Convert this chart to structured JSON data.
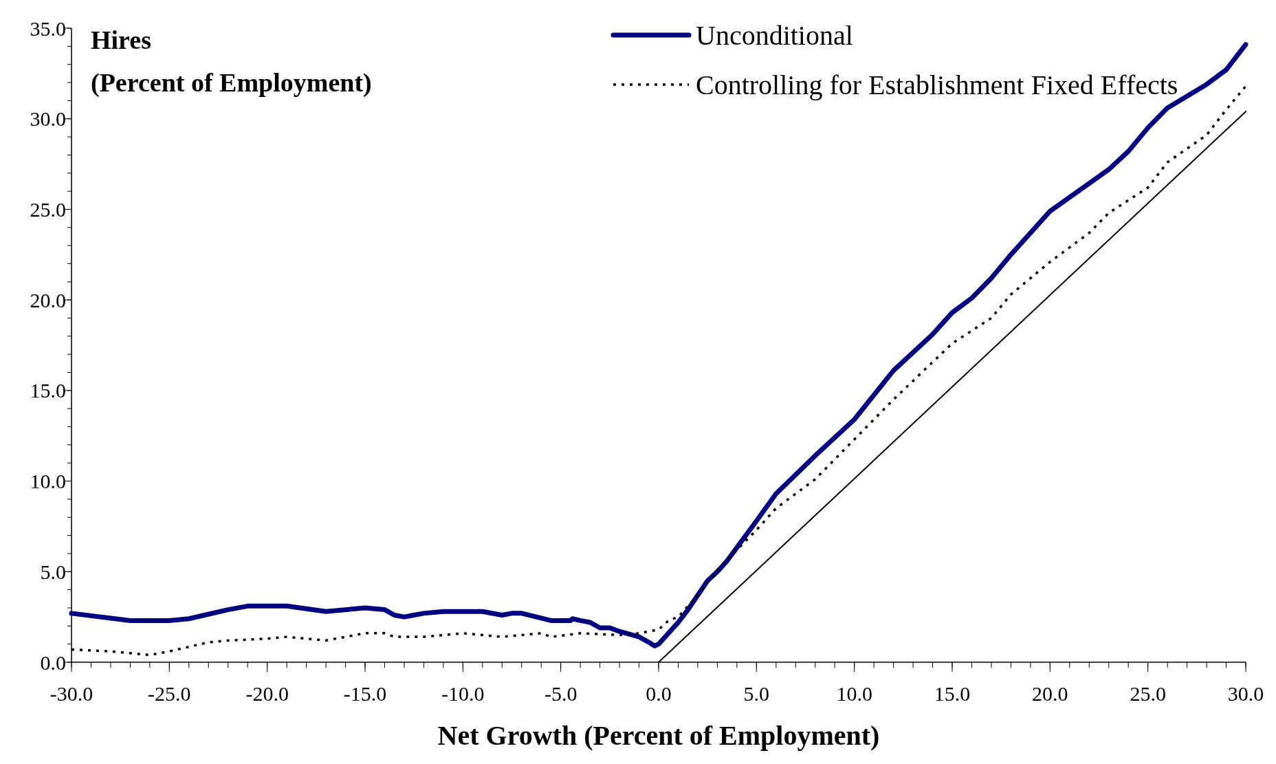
{
  "chart_data": {
    "type": "line",
    "ylabel": "Hires\n(Percent of Employment)",
    "xlabel": "Net Growth (Percent of Employment)",
    "xlim": [
      -30,
      30
    ],
    "ylim": [
      0,
      35
    ],
    "xticks": [
      {
        "value": -30,
        "label": "-30.0"
      },
      {
        "value": -25,
        "label": "-25.0"
      },
      {
        "value": -20,
        "label": "-20.0"
      },
      {
        "value": -15,
        "label": "-15.0"
      },
      {
        "value": -10,
        "label": "-10.0"
      },
      {
        "value": -5,
        "label": "-5.0"
      },
      {
        "value": 0,
        "label": "0.0"
      },
      {
        "value": 5,
        "label": "5.0"
      },
      {
        "value": 10,
        "label": "10.0"
      },
      {
        "value": 15,
        "label": "15.0"
      },
      {
        "value": 20,
        "label": "20.0"
      },
      {
        "value": 25,
        "label": "25.0"
      },
      {
        "value": 30,
        "label": "30.0"
      }
    ],
    "yticks": [
      {
        "value": 0,
        "label": "0.0"
      },
      {
        "value": 5,
        "label": "5.0"
      },
      {
        "value": 10,
        "label": "10.0"
      },
      {
        "value": 15,
        "label": "15.0"
      },
      {
        "value": 20,
        "label": "20.0"
      },
      {
        "value": 25,
        "label": "25.0"
      },
      {
        "value": 30,
        "label": "30.0"
      },
      {
        "value": 35,
        "label": "35.0"
      }
    ],
    "grid": false,
    "legend": "top right",
    "line_style": "solid",
    "marker": "none",
    "series": [
      {
        "name": "Unconditional",
        "color": "#000080",
        "x": [
          -30,
          -27,
          -25,
          -24,
          -22,
          -21,
          -19,
          -17,
          -15,
          -14,
          -13.5,
          -13,
          -12.5,
          -12,
          -11,
          -9,
          -8,
          -7.5,
          -7,
          -5.5,
          -4.5,
          -4.4,
          -4,
          -3.5,
          -3,
          -2.5,
          -2,
          -1,
          -0.5,
          -0.2,
          0,
          0.5,
          1,
          1.5,
          2,
          2.5,
          3,
          3.5,
          5,
          6,
          8,
          10,
          12,
          13.5,
          14,
          15,
          16,
          17,
          18,
          20,
          23,
          24,
          25,
          26,
          28,
          29,
          30
        ],
        "values": [
          2.7,
          2.3,
          2.3,
          2.4,
          2.9,
          3.1,
          3.1,
          2.8,
          3.0,
          2.9,
          2.6,
          2.5,
          2.6,
          2.7,
          2.8,
          2.8,
          2.6,
          2.7,
          2.7,
          2.3,
          2.3,
          2.4,
          2.3,
          2.2,
          1.9,
          1.9,
          1.7,
          1.4,
          1.1,
          0.9,
          1.0,
          1.6,
          2.2,
          2.9,
          3.7,
          4.5,
          5.0,
          5.6,
          7.8,
          9.3,
          11.4,
          13.4,
          16.1,
          17.6,
          18.1,
          19.3,
          20.1,
          21.2,
          22.5,
          24.9,
          27.2,
          28.2,
          29.5,
          30.6,
          31.9,
          32.7,
          34.1
        ]
      },
      {
        "name": "Controlling for Establishment Fixed Effects",
        "color": "#000000",
        "line_style": "dotted",
        "x": [
          -30,
          -28,
          -26,
          -25,
          -23,
          -22,
          -20,
          -19,
          -17,
          -15,
          -14,
          -13.5,
          -12,
          -10,
          -8,
          -6,
          -5.5,
          -4,
          -2,
          -1,
          0,
          0.5,
          1,
          2,
          3,
          5,
          6,
          8,
          10,
          12,
          15,
          17,
          18,
          20,
          22,
          23,
          25,
          26,
          28,
          29,
          30
        ],
        "values": [
          0.7,
          0.6,
          0.4,
          0.6,
          1.1,
          1.2,
          1.3,
          1.4,
          1.2,
          1.6,
          1.6,
          1.4,
          1.4,
          1.6,
          1.4,
          1.6,
          1.4,
          1.6,
          1.5,
          1.6,
          1.8,
          2.3,
          2.5,
          3.7,
          5.1,
          7.3,
          8.5,
          10.1,
          12.3,
          14.5,
          17.6,
          19.0,
          20.3,
          22.1,
          23.7,
          24.8,
          26.2,
          27.6,
          29.1,
          30.5,
          31.8
        ]
      },
      {
        "color": "#000000",
        "x": [
          0,
          30
        ],
        "values": [
          0,
          30.4
        ]
      }
    ]
  }
}
